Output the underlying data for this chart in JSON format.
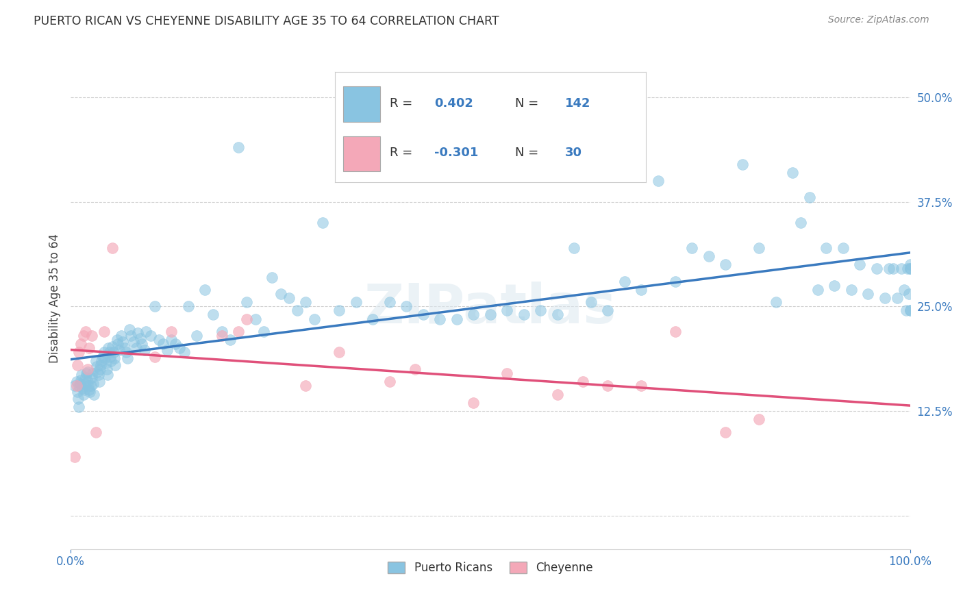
{
  "title": "PUERTO RICAN VS CHEYENNE DISABILITY AGE 35 TO 64 CORRELATION CHART",
  "source": "Source: ZipAtlas.com",
  "ylabel": "Disability Age 35 to 64",
  "xlim": [
    0.0,
    1.0
  ],
  "ylim": [
    -0.04,
    0.56
  ],
  "blue_color": "#89c4e1",
  "pink_color": "#f4a8b8",
  "blue_line_color": "#3a7abf",
  "pink_line_color": "#e0507a",
  "watermark": "ZIPatlas",
  "blue_x": [
    0.005,
    0.007,
    0.008,
    0.009,
    0.01,
    0.01,
    0.011,
    0.012,
    0.013,
    0.014,
    0.015,
    0.016,
    0.017,
    0.018,
    0.019,
    0.02,
    0.02,
    0.021,
    0.022,
    0.023,
    0.024,
    0.025,
    0.026,
    0.027,
    0.028,
    0.03,
    0.031,
    0.032,
    0.033,
    0.034,
    0.035,
    0.036,
    0.037,
    0.038,
    0.04,
    0.041,
    0.042,
    0.043,
    0.044,
    0.045,
    0.046,
    0.047,
    0.048,
    0.05,
    0.051,
    0.052,
    0.053,
    0.055,
    0.056,
    0.058,
    0.06,
    0.062,
    0.064,
    0.066,
    0.068,
    0.07,
    0.072,
    0.075,
    0.078,
    0.08,
    0.083,
    0.085,
    0.088,
    0.09,
    0.095,
    0.1,
    0.105,
    0.11,
    0.115,
    0.12,
    0.125,
    0.13,
    0.135,
    0.14,
    0.15,
    0.16,
    0.17,
    0.18,
    0.19,
    0.2,
    0.21,
    0.22,
    0.23,
    0.24,
    0.25,
    0.26,
    0.27,
    0.28,
    0.29,
    0.3,
    0.32,
    0.34,
    0.36,
    0.38,
    0.4,
    0.42,
    0.44,
    0.46,
    0.48,
    0.5,
    0.52,
    0.54,
    0.56,
    0.58,
    0.6,
    0.62,
    0.64,
    0.66,
    0.68,
    0.7,
    0.72,
    0.74,
    0.76,
    0.78,
    0.8,
    0.82,
    0.84,
    0.86,
    0.87,
    0.88,
    0.89,
    0.9,
    0.91,
    0.92,
    0.93,
    0.94,
    0.95,
    0.96,
    0.97,
    0.975,
    0.98,
    0.985,
    0.99,
    0.993,
    0.995,
    0.997,
    0.999,
    1.0,
    1.0,
    1.0,
    1.0,
    1.0
  ],
  "blue_y": [
    0.155,
    0.16,
    0.148,
    0.14,
    0.13,
    0.155,
    0.158,
    0.162,
    0.168,
    0.152,
    0.145,
    0.15,
    0.158,
    0.165,
    0.17,
    0.172,
    0.16,
    0.155,
    0.15,
    0.148,
    0.155,
    0.165,
    0.17,
    0.158,
    0.145,
    0.185,
    0.178,
    0.172,
    0.168,
    0.16,
    0.175,
    0.18,
    0.185,
    0.19,
    0.195,
    0.188,
    0.182,
    0.175,
    0.168,
    0.2,
    0.195,
    0.19,
    0.185,
    0.202,
    0.195,
    0.188,
    0.18,
    0.21,
    0.205,
    0.198,
    0.215,
    0.208,
    0.2,
    0.195,
    0.188,
    0.222,
    0.215,
    0.208,
    0.2,
    0.218,
    0.212,
    0.205,
    0.198,
    0.22,
    0.215,
    0.25,
    0.21,
    0.205,
    0.198,
    0.21,
    0.205,
    0.2,
    0.195,
    0.25,
    0.215,
    0.27,
    0.24,
    0.22,
    0.21,
    0.44,
    0.255,
    0.235,
    0.22,
    0.285,
    0.265,
    0.26,
    0.245,
    0.255,
    0.235,
    0.35,
    0.245,
    0.255,
    0.235,
    0.255,
    0.25,
    0.24,
    0.235,
    0.235,
    0.24,
    0.24,
    0.245,
    0.24,
    0.245,
    0.24,
    0.32,
    0.255,
    0.245,
    0.28,
    0.27,
    0.4,
    0.28,
    0.32,
    0.31,
    0.3,
    0.42,
    0.32,
    0.255,
    0.41,
    0.35,
    0.38,
    0.27,
    0.32,
    0.275,
    0.32,
    0.27,
    0.3,
    0.265,
    0.295,
    0.26,
    0.295,
    0.295,
    0.26,
    0.295,
    0.27,
    0.245,
    0.295,
    0.265,
    0.295,
    0.245,
    0.3,
    0.295,
    0.245
  ],
  "pink_x": [
    0.005,
    0.007,
    0.008,
    0.01,
    0.012,
    0.015,
    0.018,
    0.02,
    0.022,
    0.025,
    0.03,
    0.04,
    0.05,
    0.1,
    0.12,
    0.18,
    0.2,
    0.21,
    0.28,
    0.32,
    0.38,
    0.41,
    0.48,
    0.52,
    0.58,
    0.61,
    0.64,
    0.68,
    0.72,
    0.78,
    0.82
  ],
  "pink_y": [
    0.07,
    0.155,
    0.18,
    0.195,
    0.205,
    0.215,
    0.22,
    0.175,
    0.2,
    0.215,
    0.1,
    0.22,
    0.32,
    0.19,
    0.22,
    0.215,
    0.22,
    0.235,
    0.155,
    0.195,
    0.16,
    0.175,
    0.135,
    0.17,
    0.145,
    0.16,
    0.155,
    0.155,
    0.22,
    0.1,
    0.115
  ]
}
